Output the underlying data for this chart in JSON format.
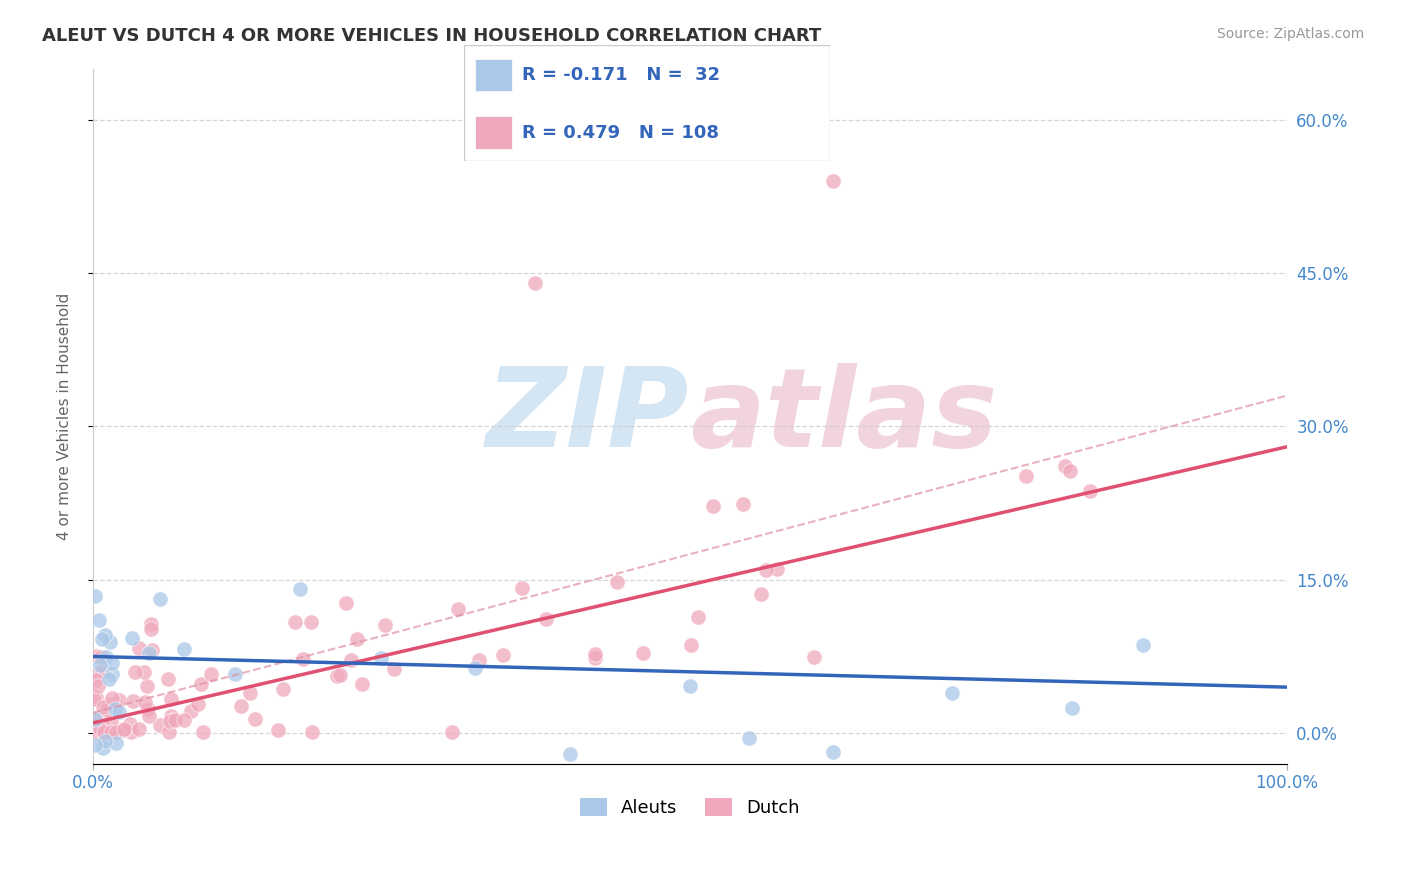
{
  "title": "ALEUT VS DUTCH 4 OR MORE VEHICLES IN HOUSEHOLD CORRELATION CHART",
  "source": "Source: ZipAtlas.com",
  "ylabel_label": "4 or more Vehicles in Household",
  "background_color": "#ffffff",
  "grid_color": "#cccccc",
  "aleut_color": "#aac8e8",
  "dutch_color": "#f0a8bc",
  "aleut_line_color": "#3366bb",
  "dutch_line_color": "#e05070",
  "dutch_ci_color": "#e090a0",
  "tick_color": "#4488cc",
  "title_color": "#333333",
  "source_color": "#999999",
  "ylabel_color": "#666666",
  "aleut_R": -0.171,
  "aleut_N": 32,
  "dutch_R": 0.479,
  "dutch_N": 108,
  "dutch_slope": 0.27,
  "dutch_intercept": 0.01,
  "aleut_slope": -0.03,
  "aleut_intercept": 0.075,
  "xlim": [
    0.0,
    1.0
  ],
  "ylim": [
    -0.03,
    0.65
  ],
  "yticks": [
    0.0,
    0.15,
    0.3,
    0.45,
    0.6
  ],
  "ytick_labels": [
    "0.0%",
    "15.0%",
    "30.0%",
    "45.0%",
    "60.0%"
  ],
  "xtick_positions": [
    0.0,
    1.0
  ],
  "xtick_labels": [
    "0.0%",
    "100.0%"
  ]
}
